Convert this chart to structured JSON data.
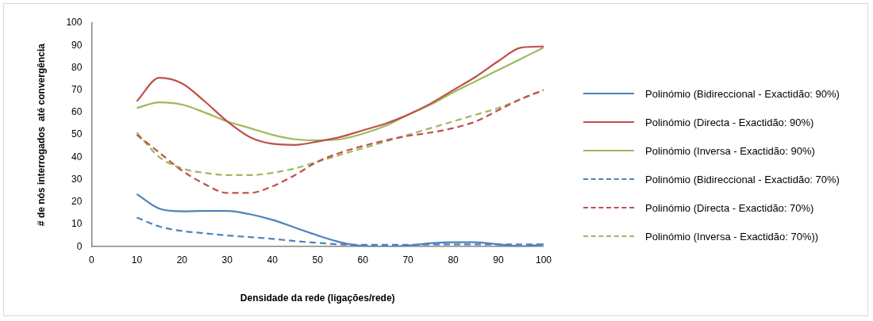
{
  "chart_data": {
    "type": "line",
    "xlabel": "Densidade da rede (ligações/rede)",
    "ylabel": "# de nós interrogados  até convergência",
    "x": [
      10,
      15,
      20,
      25,
      30,
      35,
      40,
      45,
      50,
      55,
      60,
      65,
      70,
      75,
      80,
      85,
      90,
      95,
      100
    ],
    "xlim": [
      0,
      100
    ],
    "xticks": [
      0,
      10,
      20,
      30,
      40,
      50,
      60,
      70,
      80,
      90,
      100
    ],
    "ylim": [
      0,
      100
    ],
    "yticks": [
      0,
      10,
      20,
      30,
      40,
      50,
      60,
      70,
      80,
      90,
      100
    ],
    "grid": false,
    "legend": "right",
    "marker": "none",
    "series": [
      {
        "name": "Polinómio (Bidireccional - Exactidão: 90%)",
        "color": "#4f81bd",
        "line_style": "solid",
        "values": [
          23.5,
          17,
          15.8,
          16,
          16,
          14.5,
          12,
          8.5,
          5,
          2,
          0.3,
          0,
          0.5,
          1.5,
          2,
          2,
          1,
          0.2,
          1
        ]
      },
      {
        "name": "Polinómio (Directa - Exactidão: 90%)",
        "color": "#c0504d",
        "line_style": "solid",
        "values": [
          65,
          75.5,
          73,
          65,
          56,
          49,
          46,
          45.5,
          47,
          49,
          52,
          55,
          59,
          64,
          70,
          76,
          83,
          89,
          89.5
        ]
      },
      {
        "name": "Polinómio (Inversa - Exactidão: 90%)",
        "color": "#9bbb59",
        "line_style": "solid",
        "values": [
          62,
          64.5,
          63.5,
          60,
          56,
          53,
          50,
          48,
          47.5,
          48,
          50.5,
          54,
          59,
          63.5,
          69,
          74,
          79,
          84,
          89
        ]
      },
      {
        "name": "Polinómio (Bidireccional - Exactidão: 70%)",
        "color": "#4f81bd",
        "line_style": "dashed",
        "values": [
          13,
          9,
          7,
          6,
          5,
          4.3,
          3.5,
          2.5,
          1.7,
          1,
          0.8,
          0.8,
          0.8,
          1,
          1,
          1,
          1,
          1,
          1
        ]
      },
      {
        "name": "Polinómio (Directa - Exactidão: 70%)",
        "color": "#c0504d",
        "line_style": "dashed",
        "values": [
          50,
          42,
          34,
          28,
          24,
          24,
          27,
          32,
          38,
          42,
          45,
          47.5,
          49.5,
          51,
          53,
          56,
          61,
          66,
          70
        ]
      },
      {
        "name": "Polinómio (Inversa - Exactidão: 70%))",
        "color": "#9bbb59",
        "line_style": "dashed",
        "values": [
          51,
          40,
          35,
          33,
          32,
          32,
          33,
          35,
          38,
          41,
          44,
          47,
          50,
          53,
          56,
          59,
          62,
          66,
          70
        ]
      }
    ]
  }
}
